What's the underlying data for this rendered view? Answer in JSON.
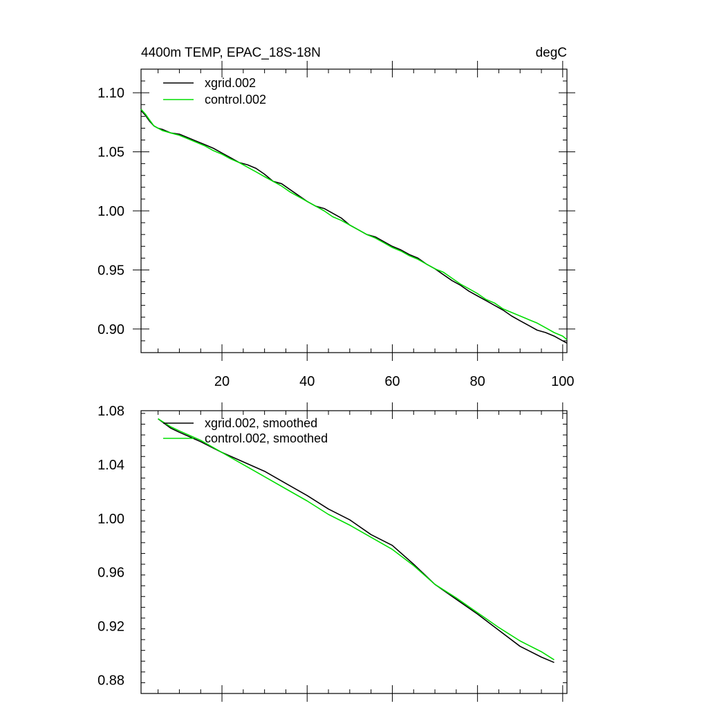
{
  "colors": {
    "xgrid": "#000000",
    "control": "#00dd00",
    "axis": "#000000",
    "background": "#ffffff"
  },
  "chart_data": [
    {
      "type": "line",
      "title": "4400m TEMP, EPAC_18S-18N",
      "units": "degC",
      "xlim": [
        1,
        101
      ],
      "ylim": [
        0.88,
        1.12
      ],
      "xticks": [
        20,
        40,
        60,
        80,
        100
      ],
      "xtick_labels": [
        "20",
        "40",
        "60",
        "80",
        "100"
      ],
      "yticks": [
        0.9,
        0.95,
        1.0,
        1.05,
        1.1
      ],
      "ytick_labels": [
        "0.90",
        "0.95",
        "1.00",
        "1.05",
        "1.10"
      ],
      "legend": "top-left",
      "series": [
        {
          "name": "xgrid.002",
          "color": "#000000",
          "x": [
            1,
            2,
            3,
            4,
            5,
            6,
            8,
            10,
            12,
            14,
            16,
            18,
            20,
            22,
            24,
            26,
            28,
            30,
            32,
            34,
            36,
            38,
            40,
            42,
            44,
            46,
            48,
            50,
            52,
            54,
            56,
            58,
            60,
            62,
            64,
            66,
            68,
            70,
            72,
            74,
            76,
            78,
            80,
            82,
            84,
            86,
            88,
            90,
            92,
            94,
            96,
            98,
            100,
            101
          ],
          "y": [
            1.085,
            1.081,
            1.076,
            1.072,
            1.07,
            1.069,
            1.066,
            1.065,
            1.062,
            1.059,
            1.056,
            1.053,
            1.049,
            1.045,
            1.041,
            1.039,
            1.036,
            1.031,
            1.025,
            1.023,
            1.018,
            1.013,
            1.008,
            1.004,
            1.002,
            0.998,
            0.994,
            0.988,
            0.984,
            0.98,
            0.978,
            0.974,
            0.97,
            0.967,
            0.963,
            0.96,
            0.955,
            0.951,
            0.946,
            0.941,
            0.937,
            0.932,
            0.928,
            0.924,
            0.92,
            0.916,
            0.911,
            0.907,
            0.903,
            0.899,
            0.897,
            0.894,
            0.89,
            0.888
          ]
        },
        {
          "name": "control.002",
          "color": "#00dd00",
          "x": [
            1,
            2,
            3,
            4,
            5,
            6,
            8,
            10,
            12,
            14,
            16,
            18,
            20,
            22,
            24,
            26,
            28,
            30,
            32,
            34,
            36,
            38,
            40,
            42,
            44,
            46,
            48,
            50,
            52,
            54,
            56,
            58,
            60,
            62,
            64,
            66,
            68,
            70,
            72,
            74,
            76,
            78,
            80,
            82,
            84,
            86,
            88,
            90,
            92,
            94,
            96,
            98,
            100,
            101
          ],
          "y": [
            1.086,
            1.082,
            1.077,
            1.072,
            1.07,
            1.068,
            1.066,
            1.064,
            1.061,
            1.058,
            1.055,
            1.051,
            1.048,
            1.044,
            1.041,
            1.037,
            1.033,
            1.029,
            1.025,
            1.021,
            1.016,
            1.012,
            1.008,
            1.004,
            1.0,
            0.995,
            0.992,
            0.988,
            0.984,
            0.98,
            0.977,
            0.973,
            0.969,
            0.966,
            0.962,
            0.959,
            0.955,
            0.951,
            0.948,
            0.943,
            0.938,
            0.934,
            0.93,
            0.925,
            0.922,
            0.917,
            0.914,
            0.911,
            0.908,
            0.905,
            0.901,
            0.897,
            0.894,
            0.891
          ]
        }
      ]
    },
    {
      "type": "line",
      "xlim": [
        1,
        101
      ],
      "ylim": [
        0.87,
        1.08
      ],
      "xticks": [
        20,
        40,
        60,
        80,
        100
      ],
      "yticks": [
        0.88,
        0.92,
        0.96,
        1.0,
        1.04,
        1.08
      ],
      "ytick_labels": [
        "0.88",
        "0.92",
        "0.96",
        "1.00",
        "1.04",
        "1.08"
      ],
      "legend": "top-left",
      "series": [
        {
          "name": "xgrid.002, smoothed",
          "color": "#000000",
          "x": [
            5,
            8,
            10,
            15,
            20,
            25,
            30,
            35,
            40,
            45,
            50,
            55,
            60,
            65,
            70,
            75,
            80,
            85,
            90,
            95,
            98
          ],
          "y": [
            1.074,
            1.067,
            1.064,
            1.057,
            1.049,
            1.042,
            1.035,
            1.026,
            1.017,
            1.007,
            0.999,
            0.988,
            0.98,
            0.966,
            0.951,
            0.94,
            0.929,
            0.917,
            0.905,
            0.897,
            0.893
          ]
        },
        {
          "name": "control.002, smoothed",
          "color": "#00dd00",
          "x": [
            5,
            8,
            10,
            15,
            20,
            25,
            30,
            35,
            40,
            45,
            50,
            55,
            60,
            65,
            70,
            75,
            80,
            85,
            90,
            95,
            98
          ],
          "y": [
            1.074,
            1.068,
            1.065,
            1.058,
            1.049,
            1.04,
            1.031,
            1.022,
            1.013,
            1.003,
            0.995,
            0.986,
            0.977,
            0.965,
            0.951,
            0.941,
            0.93,
            0.919,
            0.909,
            0.901,
            0.895
          ]
        }
      ]
    }
  ]
}
